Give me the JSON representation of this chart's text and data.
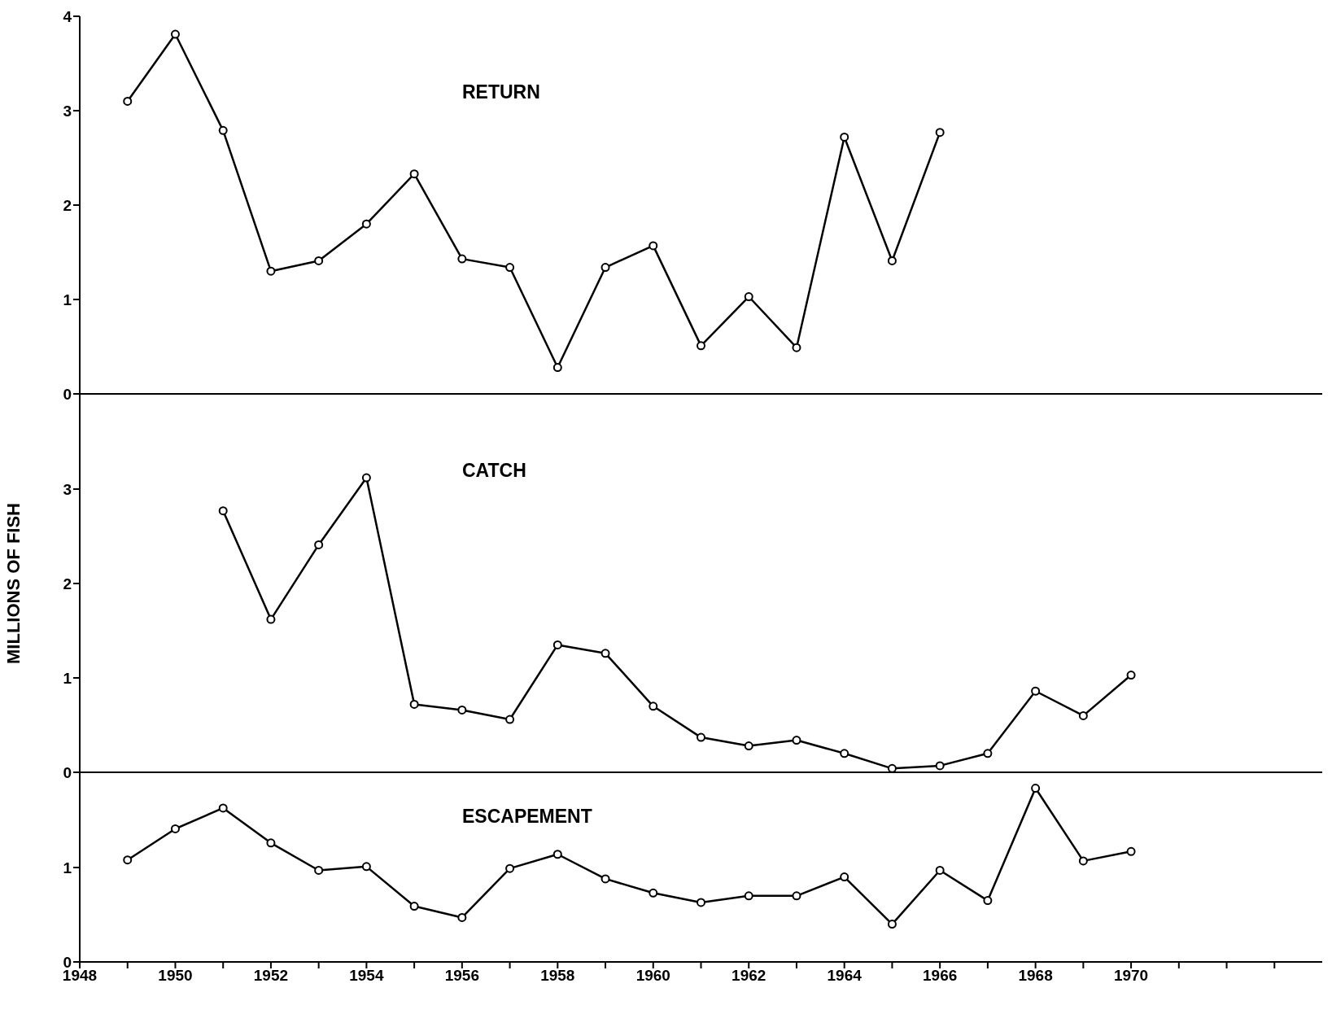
{
  "chart_data": [
    {
      "type": "line",
      "annotations": [
        "RETURN"
      ],
      "x": [
        1949,
        1950,
        1951,
        1952,
        1953,
        1954,
        1955,
        1956,
        1957,
        1958,
        1959,
        1960,
        1961,
        1962,
        1963,
        1964,
        1965,
        1966
      ],
      "values": [
        3.1,
        3.81,
        2.79,
        1.3,
        1.41,
        1.8,
        2.33,
        1.43,
        1.34,
        0.28,
        1.34,
        1.57,
        0.51,
        1.03,
        0.49,
        2.72,
        1.41,
        2.77
      ],
      "color": "#000000",
      "marker": "circle",
      "xlim": [
        1948,
        1974
      ],
      "ylim": [
        0,
        4
      ],
      "yticks": [
        0,
        1,
        2,
        3,
        4
      ],
      "tick_labels": "y"
    },
    {
      "type": "line",
      "annotations": [
        "CATCH"
      ],
      "ylabel": "MILLIONS OF FISH",
      "x": [
        1951,
        1952,
        1953,
        1954,
        1955,
        1956,
        1957,
        1958,
        1959,
        1960,
        1961,
        1962,
        1963,
        1964,
        1965,
        1966,
        1967,
        1968,
        1969,
        1970
      ],
      "values": [
        2.77,
        1.62,
        2.41,
        3.12,
        0.72,
        0.66,
        0.56,
        1.35,
        1.26,
        0.7,
        0.37,
        0.28,
        0.34,
        0.2,
        0.04,
        0.07,
        0.2,
        0.86,
        0.6,
        1.03
      ],
      "color": "#000000",
      "marker": "circle",
      "xlim": [
        1948,
        1974
      ],
      "ylim": [
        0,
        4
      ],
      "yticks": [
        0,
        1,
        2,
        3
      ],
      "tick_labels": "y"
    },
    {
      "type": "line",
      "annotations": [
        "ESCAPEMENT"
      ],
      "x": [
        1949,
        1950,
        1951,
        1952,
        1953,
        1954,
        1955,
        1956,
        1957,
        1958,
        1959,
        1960,
        1961,
        1962,
        1963,
        1964,
        1965,
        1966,
        1967,
        1968,
        1969,
        1970
      ],
      "values": [
        1.08,
        1.41,
        1.63,
        1.26,
        0.97,
        1.01,
        0.59,
        0.47,
        0.99,
        1.14,
        0.88,
        0.73,
        0.63,
        0.7,
        0.7,
        0.9,
        0.4,
        0.97,
        0.65,
        1.84,
        1.07,
        1.17
      ],
      "color": "#000000",
      "marker": "circle",
      "xlim": [
        1948,
        1974
      ],
      "xticks": [
        1948,
        {
          "value": 1949,
          "label": null
        },
        1950,
        {
          "value": 1951,
          "label": null
        },
        1952,
        {
          "value": 1953,
          "label": null
        },
        1954,
        {
          "value": 1955,
          "label": null
        },
        1956,
        {
          "value": 1957,
          "label": null
        },
        1958,
        {
          "value": 1959,
          "label": null
        },
        1960,
        {
          "value": 1961,
          "label": null
        },
        1962,
        {
          "value": 1963,
          "label": null
        },
        1964,
        {
          "value": 1965,
          "label": null
        },
        1966,
        {
          "value": 1967,
          "label": null
        },
        1968,
        {
          "value": 1969,
          "label": null
        },
        1970,
        {
          "value": 1971,
          "label": null
        },
        {
          "value": 1972,
          "label": null
        },
        {
          "value": 1973,
          "label": null
        }
      ],
      "ylim": [
        0,
        2
      ],
      "yticks": [
        0,
        1
      ]
    }
  ]
}
